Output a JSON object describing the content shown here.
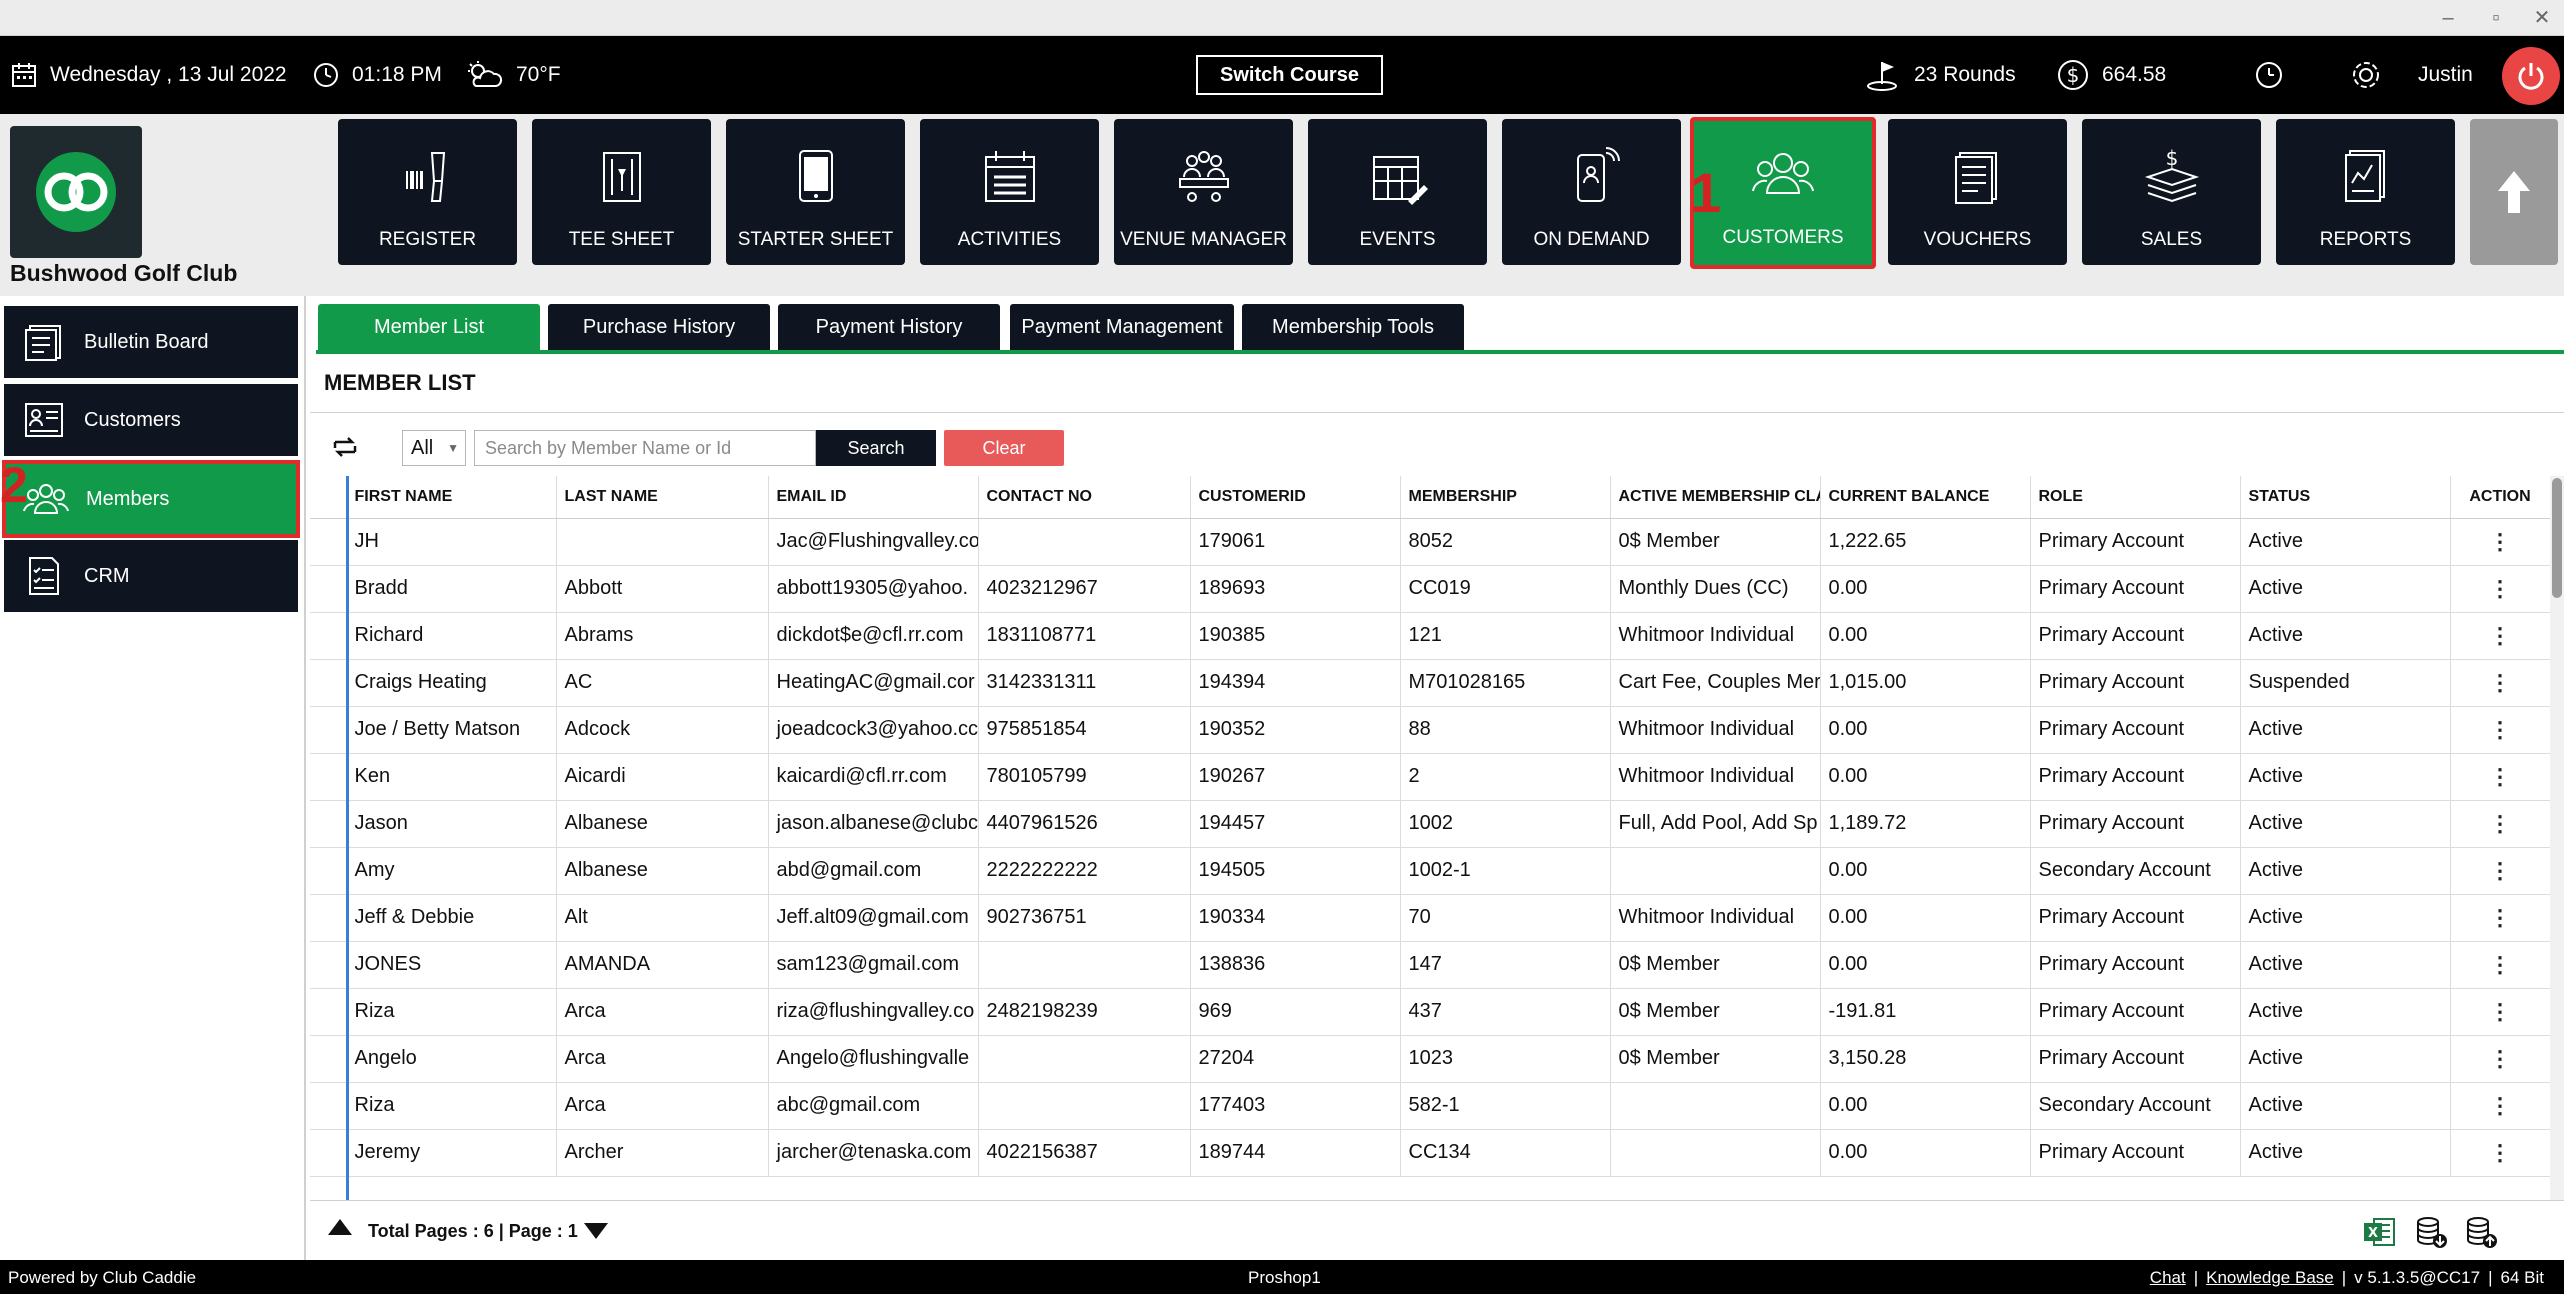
{
  "topbar": {
    "date": "Wednesday ,  13 Jul 2022",
    "time": "01:18 PM",
    "weather": "70°F",
    "switch_course": "Switch Course",
    "rounds": "23 Rounds",
    "balance": "664.58",
    "user": "Justin"
  },
  "club": {
    "name": "Bushwood Golf Club"
  },
  "nav": {
    "tiles": [
      {
        "label": "REGISTER",
        "icon": "barcode-scanner-icon"
      },
      {
        "label": "TEE SHEET",
        "icon": "tee-sheet-icon"
      },
      {
        "label": "STARTER SHEET",
        "icon": "tablet-icon"
      },
      {
        "label": "ACTIVITIES",
        "icon": "calendar-list-icon"
      },
      {
        "label": "VENUE MANAGER",
        "icon": "meeting-table-icon"
      },
      {
        "label": "EVENTS",
        "icon": "calendar-edit-icon"
      },
      {
        "label": "ON DEMAND",
        "icon": "mobile-signal-icon"
      },
      {
        "label": "CUSTOMERS",
        "icon": "customers-group-icon"
      },
      {
        "label": "VOUCHERS",
        "icon": "voucher-document-icon"
      },
      {
        "label": "SALES",
        "icon": "money-stack-icon"
      },
      {
        "label": "REPORTS",
        "icon": "report-chart-icon"
      }
    ],
    "active": "CUSTOMERS",
    "badge_1": "1",
    "badge_2": "2"
  },
  "sidebar": {
    "items": [
      {
        "label": "Bulletin Board",
        "icon": "bulletin-board-icon"
      },
      {
        "label": "Customers",
        "icon": "customer-card-icon"
      },
      {
        "label": "Members",
        "icon": "members-group-icon"
      },
      {
        "label": "CRM",
        "icon": "crm-checklist-icon"
      }
    ],
    "active": "Members"
  },
  "tabs": [
    "Member List",
    "Purchase History",
    "Payment History",
    "Payment Management",
    "Membership Tools"
  ],
  "section_title": "MEMBER LIST",
  "toolbar": {
    "filter_value": "All",
    "search_placeholder": "Search by Member Name or Id",
    "search_label": "Search",
    "clear_label": "Clear"
  },
  "table": {
    "columns": [
      "FIRST NAME",
      "LAST NAME",
      "EMAIL ID",
      "CONTACT NO",
      "CUSTOMERID",
      "MEMBERSHIP",
      "ACTIVE MEMBERSHIP CLA",
      "CURRENT BALANCE",
      "ROLE",
      "STATUS",
      "ACTION"
    ],
    "rows": [
      [
        "JH",
        "",
        "Jac@Flushingvalley.co",
        "",
        "179061",
        "8052",
        "0$ Member",
        "1,222.65",
        "Primary Account",
        "Active"
      ],
      [
        "Bradd",
        "Abbott",
        "abbott19305@yahoo.",
        "4023212967",
        "189693",
        "CC019",
        "Monthly Dues (CC)",
        "0.00",
        "Primary Account",
        "Active"
      ],
      [
        " Richard",
        "Abrams",
        "dickdot$e@cfl.rr.com",
        "1831108771",
        "190385",
        "121",
        "Whitmoor Individual",
        "0.00",
        "Primary Account",
        "Active"
      ],
      [
        "Craigs Heating",
        "AC",
        "HeatingAC@gmail.cor",
        "3142331311",
        "194394",
        "M701028165",
        "Cart Fee, Couples Mer",
        "1,015.00",
        "Primary Account",
        "Suspended"
      ],
      [
        " Joe / Betty Matson",
        "Adcock",
        "joeadcock3@yahoo.cc",
        "975851854",
        "190352",
        "88",
        "Whitmoor Individual",
        "0.00",
        "Primary Account",
        "Active"
      ],
      [
        " Ken",
        "Aicardi",
        "kaicardi@cfl.rr.com",
        "780105799",
        "190267",
        "2",
        "Whitmoor Individual",
        "0.00",
        "Primary Account",
        "Active"
      ],
      [
        "Jason",
        "Albanese",
        "jason.albanese@clubc",
        "4407961526",
        "194457",
        "1002",
        "Full, Add Pool, Add Sp",
        "1,189.72",
        "Primary Account",
        "Active"
      ],
      [
        "Amy",
        "Albanese",
        "abd@gmail.com",
        "2222222222",
        "194505",
        "1002-1",
        "",
        "0.00",
        "Secondary Account",
        "Active"
      ],
      [
        " Jeff & Debbie",
        "Alt",
        "Jeff.alt09@gmail.com",
        "902736751",
        "190334",
        "70",
        "Whitmoor Individual",
        "0.00",
        "Primary Account",
        "Active"
      ],
      [
        "JONES",
        "AMANDA",
        "sam123@gmail.com",
        "",
        "138836",
        "147",
        "0$ Member",
        "0.00",
        "Primary Account",
        "Active"
      ],
      [
        "Riza",
        "Arca",
        "riza@flushingvalley.co",
        "2482198239",
        "969",
        "437",
        "0$ Member",
        "-191.81",
        "Primary Account",
        "Active"
      ],
      [
        "Angelo",
        "Arca",
        "Angelo@flushingvalle",
        "",
        "27204",
        "1023",
        "0$ Member",
        "3,150.28",
        "Primary Account",
        "Active"
      ],
      [
        "Riza",
        "Arca",
        "abc@gmail.com",
        "",
        "177403",
        "582-1",
        "",
        "0.00",
        "Secondary Account",
        "Active"
      ],
      [
        "Jeremy",
        "Archer",
        "jarcher@tenaska.com",
        "4022156387",
        "189744",
        "CC134",
        "",
        "0.00",
        "Primary Account",
        "Active"
      ]
    ]
  },
  "pager": {
    "text": "Total Pages : 6 | Page : 1"
  },
  "footer": {
    "powered": "Powered by Club Caddie",
    "station": "Proshop1",
    "chat": "Chat",
    "kb": "Knowledge Base",
    "version": "v 5.1.3.5@CC17",
    "bits": "64 Bit",
    "sep": "|"
  },
  "colors": {
    "accent_green": "#109a49",
    "dark_tile": "#0f1520",
    "highlight_red": "#e02b2b",
    "clear_red": "#e85a5a"
  }
}
